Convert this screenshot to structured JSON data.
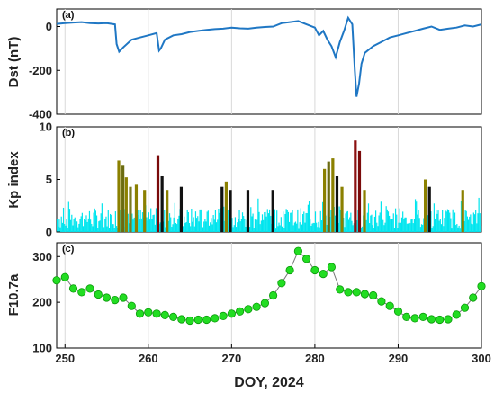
{
  "chart_data": [
    {
      "type": "line",
      "label": "(a)",
      "ylabel": "Dst (nT)",
      "xlim": [
        249,
        300
      ],
      "ylim": [
        -400,
        80
      ],
      "yticks": [
        0,
        -200,
        -400
      ],
      "grid": "vertical",
      "color": "#1f77c4",
      "x": [
        249,
        250,
        251,
        252,
        253,
        254,
        255,
        256,
        256.2,
        256.5,
        257,
        258,
        259,
        260,
        261,
        261.3,
        261.5,
        262,
        263,
        264,
        265,
        266,
        267,
        268,
        269,
        270,
        271,
        272,
        273,
        274,
        275,
        276,
        277,
        278,
        279,
        280,
        280.5,
        281,
        281.5,
        282,
        282.5,
        283,
        283.5,
        284,
        284.5,
        284.8,
        285,
        285.3,
        285.6,
        286,
        287,
        288,
        289,
        290,
        291,
        292,
        293,
        294,
        295,
        296,
        297,
        298,
        299,
        300
      ],
      "y": [
        12,
        15,
        18,
        20,
        15,
        14,
        15,
        10,
        -80,
        -115,
        -95,
        -60,
        -50,
        -40,
        -30,
        -110,
        -100,
        -60,
        -40,
        -35,
        -25,
        -20,
        -15,
        -12,
        -10,
        -5,
        -8,
        -10,
        -5,
        -2,
        0,
        15,
        20,
        25,
        10,
        -5,
        -40,
        -20,
        -60,
        -90,
        -140,
        -70,
        -20,
        40,
        10,
        -200,
        -320,
        -260,
        -170,
        -120,
        -90,
        -70,
        -50,
        -40,
        -30,
        -20,
        -10,
        0,
        -15,
        -10,
        -5,
        5,
        0,
        10
      ]
    },
    {
      "type": "bar",
      "label": "(b)",
      "ylabel": "Kp index",
      "xlim": [
        249,
        300
      ],
      "ylim": [
        0,
        10
      ],
      "yticks": [
        0,
        5,
        10
      ],
      "grid": "vertical",
      "background_color": "#00e5ee",
      "storms": [
        {
          "x": 256.5,
          "value": 6.8,
          "color": "#8b8000"
        },
        {
          "x": 257.0,
          "value": 6.3,
          "color": "#6b6b10"
        },
        {
          "x": 257.4,
          "value": 5.2,
          "color": "#8b8000"
        },
        {
          "x": 257.9,
          "value": 4.3,
          "color": "#7a7a20"
        },
        {
          "x": 258.6,
          "value": 4.5,
          "color": "#8b8000"
        },
        {
          "x": 259.6,
          "value": 4.0,
          "color": "#8b8000"
        },
        {
          "x": 261.2,
          "value": 7.3,
          "color": "#7a0a0a"
        },
        {
          "x": 261.7,
          "value": 5.3,
          "color": "#111111"
        },
        {
          "x": 262.3,
          "value": 4.0,
          "color": "#8b8000"
        },
        {
          "x": 264.0,
          "value": 4.3,
          "color": "#111111"
        },
        {
          "x": 268.9,
          "value": 4.3,
          "color": "#111111"
        },
        {
          "x": 269.4,
          "value": 4.8,
          "color": "#8b8000"
        },
        {
          "x": 269.9,
          "value": 4.0,
          "color": "#111111"
        },
        {
          "x": 272.0,
          "value": 4.0,
          "color": "#111111"
        },
        {
          "x": 275.0,
          "value": 4.0,
          "color": "#111111"
        },
        {
          "x": 281.2,
          "value": 6.0,
          "color": "#8b8000"
        },
        {
          "x": 281.7,
          "value": 6.7,
          "color": "#6b6b10"
        },
        {
          "x": 282.2,
          "value": 7.0,
          "color": "#8b8000"
        },
        {
          "x": 282.7,
          "value": 5.3,
          "color": "#111111"
        },
        {
          "x": 283.3,
          "value": 4.3,
          "color": "#8b8000"
        },
        {
          "x": 284.9,
          "value": 8.7,
          "color": "#8b1010"
        },
        {
          "x": 285.4,
          "value": 7.7,
          "color": "#7a0a0a"
        },
        {
          "x": 286.0,
          "value": 4.0,
          "color": "#8b8000"
        },
        {
          "x": 293.3,
          "value": 5.0,
          "color": "#8b8000"
        },
        {
          "x": 293.8,
          "value": 4.3,
          "color": "#111111"
        },
        {
          "x": 297.8,
          "value": 4.0,
          "color": "#8b8000"
        }
      ]
    },
    {
      "type": "scatter",
      "label": "(c)",
      "ylabel": "F10.7a",
      "xlabel": "DOY, 2024",
      "xlim": [
        249,
        300
      ],
      "ylim": [
        100,
        330
      ],
      "yticks": [
        100,
        200,
        300
      ],
      "xticks": [
        250,
        260,
        270,
        280,
        290,
        300
      ],
      "grid": "vertical",
      "marker_color": "#22dd22",
      "x": [
        249,
        250,
        251,
        252,
        253,
        254,
        255,
        256,
        257,
        258,
        259,
        260,
        261,
        262,
        263,
        264,
        265,
        266,
        267,
        268,
        269,
        270,
        271,
        272,
        273,
        274,
        275,
        276,
        277,
        278,
        279,
        280,
        281,
        282,
        283,
        284,
        285,
        286,
        287,
        288,
        289,
        290,
        291,
        292,
        293,
        294,
        295,
        296,
        297,
        298,
        299,
        300
      ],
      "y": [
        248,
        255,
        230,
        222,
        230,
        217,
        210,
        205,
        210,
        192,
        175,
        178,
        175,
        172,
        168,
        163,
        160,
        162,
        162,
        165,
        170,
        175,
        180,
        185,
        190,
        198,
        215,
        242,
        270,
        312,
        295,
        270,
        262,
        277,
        228,
        222,
        222,
        218,
        215,
        202,
        192,
        180,
        168,
        165,
        168,
        163,
        162,
        163,
        173,
        188,
        210,
        235
      ]
    }
  ]
}
